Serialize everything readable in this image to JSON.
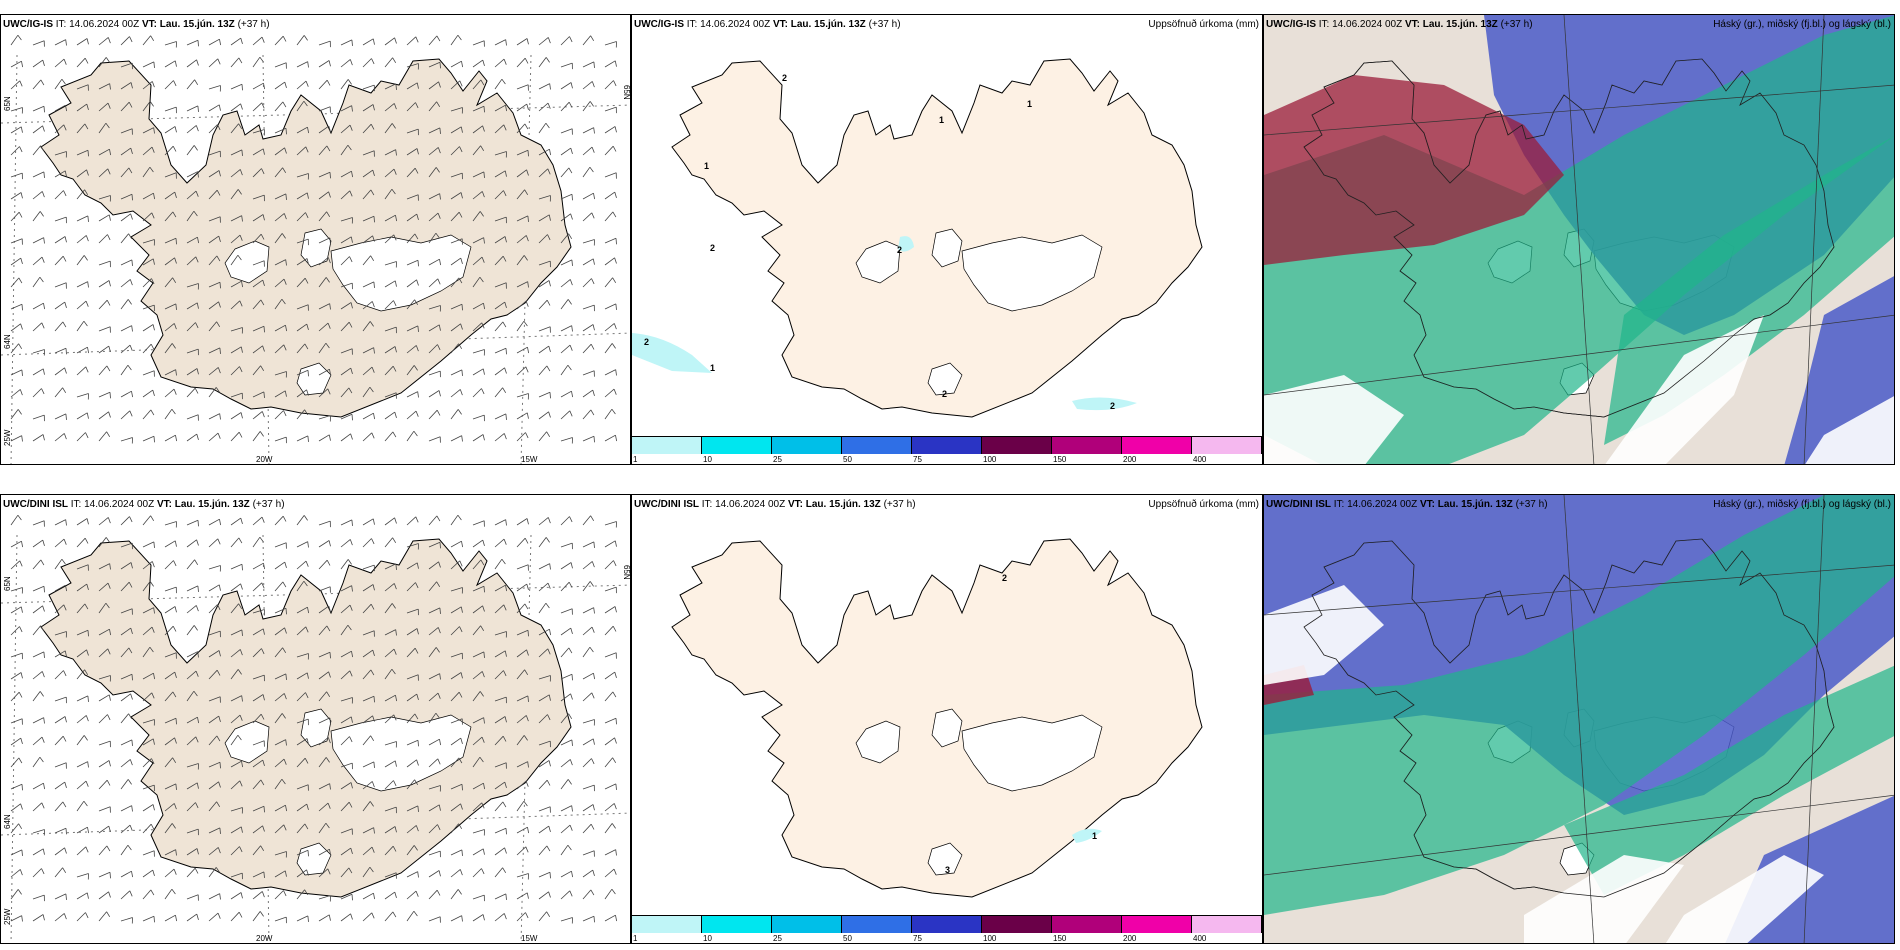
{
  "row_top": {
    "wind": {
      "model": "UWC/IG-IS",
      "it_label": "IT:",
      "it_value": "14.06.2024 00Z",
      "vt_label": "VT:",
      "vt_value": "Lau. 15.jún. 13Z",
      "lead": "(+37 h)",
      "lat_labels": [
        "65N",
        "64N",
        "25W"
      ],
      "lat_labels_right": [
        "65N"
      ],
      "lon_labels": [
        "20W",
        "15W"
      ]
    },
    "precip": {
      "model": "UWC/IG-IS",
      "it_label": "IT:",
      "it_value": "14.06.2024 00Z",
      "vt_label": "VT:",
      "vt_value": "Lau. 15.jún. 13Z",
      "lead": "(+37 h)",
      "right_title": "Uppsöfnuð úrkoma (mm)",
      "contour_labels": [
        "2",
        "1",
        "1",
        "1",
        "2",
        "2",
        "2",
        "2",
        "1",
        "2"
      ]
    },
    "cloud": {
      "model": "UWC/IG-IS",
      "it_label": "IT:",
      "it_value": "14.06.2024 00Z",
      "vt_label": "VT:",
      "vt_value": "Lau. 15.jún. 13Z",
      "lead": "(+37 h)",
      "right_title": "Háský (gr.), miðský (fj.bl.) og lágský (bl.)"
    }
  },
  "row_bottom": {
    "wind": {
      "model": "UWC/DINI ISL",
      "it_label": "IT:",
      "it_value": "14.06.2024 00Z",
      "vt_label": "VT:",
      "vt_value": "Lau. 15.jún. 13Z",
      "lead": "(+37 h)",
      "lat_labels": [
        "65N",
        "64N",
        "25W"
      ],
      "lat_labels_right": [
        "65N"
      ],
      "lon_labels": [
        "20W",
        "15W"
      ]
    },
    "precip": {
      "model": "UWC/DINI ISL",
      "it_label": "IT:",
      "it_value": "14.06.2024 00Z",
      "vt_label": "VT:",
      "vt_value": "Lau. 15.jún. 13Z",
      "lead": "(+37 h)",
      "right_title": "Uppsöfnuð úrkoma (mm)",
      "contour_labels": [
        "2",
        "1",
        "3"
      ]
    },
    "cloud": {
      "model": "UWC/DINI ISL",
      "it_label": "IT:",
      "it_value": "14.06.2024 00Z",
      "vt_label": "VT:",
      "vt_value": "Lau. 15.jún. 13Z",
      "lead": "(+37 h)",
      "right_title": "Háský (gr.), miðský (fj.bl.) og lágský (bl.)"
    }
  },
  "colorbar": {
    "ticks": [
      "1",
      "10",
      "25",
      "50",
      "75",
      "100",
      "150",
      "200",
      "400"
    ],
    "colors": [
      "#bff5f7",
      "#00e6ef",
      "#00bfe8",
      "#2f6fe6",
      "#2a34c4",
      "#6a0048",
      "#b0007a",
      "#f000a8",
      "#f5b8ef"
    ]
  },
  "colors": {
    "land_wind": "#efe4d6",
    "land_precip": "#fdf1e4",
    "ice": "#ffffff",
    "cloud_high": "#1fb58a",
    "cloud_mid": "#4a5bc9",
    "cloud_low": "#9b1c3a",
    "cloud_land": "#e8e0d8"
  }
}
